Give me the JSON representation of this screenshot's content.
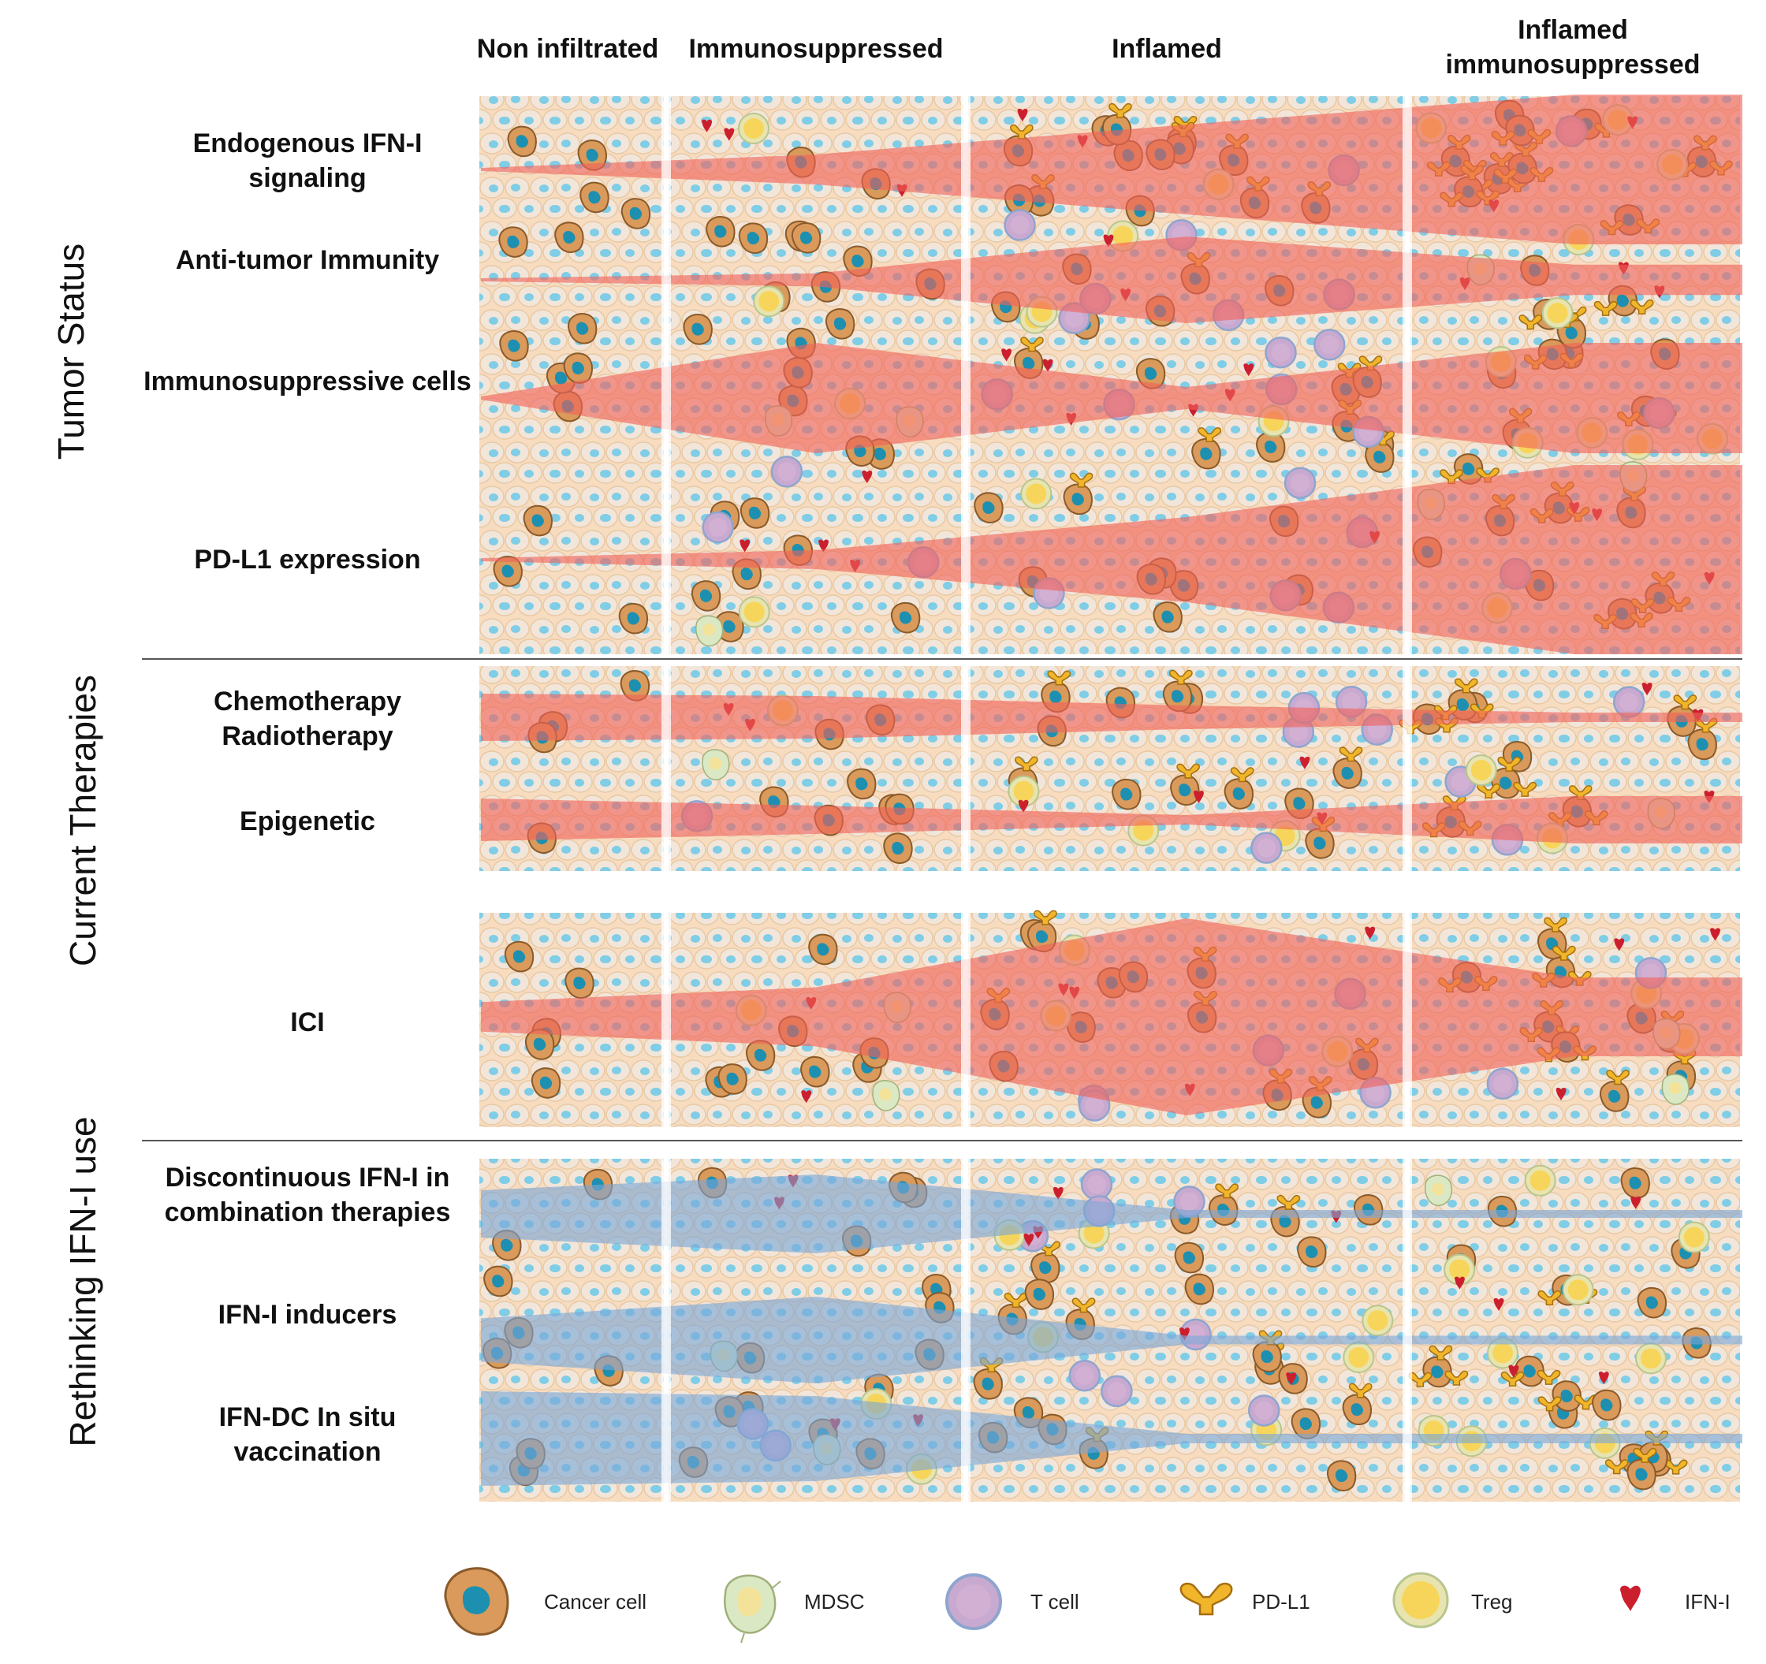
{
  "columns": [
    "Non infiltrated",
    "Immunosuppressed",
    "Inflamed",
    "Inflamed immunosuppressed"
  ],
  "sections": {
    "tumor_status": {
      "label": "Tumor Status",
      "rows": [
        "Endogenous IFN-I signaling",
        "Anti-tumor Immunity",
        "Immunosuppressive cells",
        "PD-L1 expression"
      ]
    },
    "current_therapies": {
      "label": "Current Therapies",
      "rows": [
        "Chemotherapy Radiotherapy",
        "Epigenetic",
        "ICI"
      ]
    },
    "rethinking": {
      "label": "Rethinking IFN-I use",
      "rows": [
        "Discontinuous IFN-I in combination therapies",
        "IFN-I inducers",
        "IFN-DC In situ vaccination"
      ]
    }
  },
  "legend": {
    "cancer_cell": "Cancer cell",
    "mdsc": "MDSC",
    "t_cell": "T cell",
    "pd_l1": "PD-L1",
    "treg": "Treg",
    "ifn_i": "IFN-I"
  },
  "colors": {
    "wedge_red": "#f0625a",
    "wedge_blue": "#7aa6d6",
    "tissue_bg": "#f6d8b8",
    "nucleus": "#5fc3e0",
    "cancer": "#d99a5b",
    "tcell": "#c8a9cf",
    "treg": "#f4dc7c",
    "mdsc": "#dbe8c4",
    "pdl1": "#e8a42a",
    "ifn": "#cc1f2e"
  },
  "intensity": {
    "endogenous_ifn": [
      0,
      0.2,
      0.6,
      1.0
    ],
    "anti_tumor": [
      0,
      0.15,
      1.0,
      0.35
    ],
    "immunosuppressive": [
      0,
      1.0,
      0.2,
      1.0
    ],
    "pd_l1": [
      0,
      0.1,
      0.45,
      1.0
    ],
    "chemo_radio": [
      1.0,
      0.9,
      0.5,
      0.2
    ],
    "epigenetic": [
      0.9,
      0.6,
      0.2,
      1.0
    ],
    "ici": [
      0.15,
      0.3,
      1.0,
      0.4
    ],
    "ifn_combo": [
      0.6,
      1.0,
      0.1,
      0.1
    ],
    "ifn_inducers": [
      0.5,
      1.0,
      0.1,
      0.1
    ],
    "ifn_dc": [
      1.0,
      0.9,
      0.1,
      0.1
    ]
  }
}
